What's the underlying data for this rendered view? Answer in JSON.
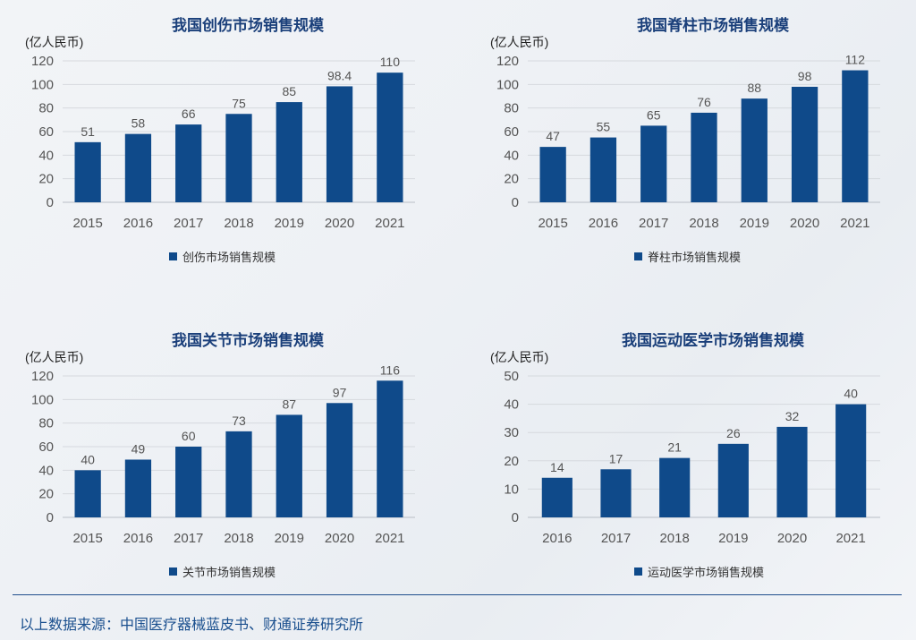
{
  "charts": [
    {
      "title": "我国创伤市场销售规模",
      "unit": "(亿人民币)",
      "legend": "创伤市场销售规模"
    },
    {
      "title": "我国脊柱市场销售规模",
      "unit": "(亿人民币)",
      "legend": "脊柱市场销售规模"
    },
    {
      "title": "我国关节市场销售规模",
      "unit": "(亿人民币)",
      "legend": "关节市场销售规模"
    },
    {
      "title": "我国运动医学市场销售规模",
      "unit": "(亿人民币)",
      "legend": "运动医学市场销售规模"
    }
  ],
  "chart_data": [
    {
      "type": "bar",
      "title": "我国创伤市场销售规模",
      "ylabel": "(亿人民币)",
      "categories": [
        "2015",
        "2016",
        "2017",
        "2018",
        "2019",
        "2020",
        "2021"
      ],
      "series": [
        {
          "name": "创伤市场销售规模",
          "values": [
            51,
            58,
            66,
            75,
            85,
            98.4,
            110
          ]
        }
      ],
      "data_labels": [
        "51",
        "58",
        "66",
        "75",
        "85",
        "98.4",
        "110"
      ],
      "ylim": [
        0,
        120
      ],
      "yticks": [
        0,
        20,
        40,
        60,
        80,
        100,
        120
      ],
      "grid": true,
      "legend_position": "bottom",
      "color": "#0f4a8a"
    },
    {
      "type": "bar",
      "title": "我国脊柱市场销售规模",
      "ylabel": "(亿人民币)",
      "categories": [
        "2015",
        "2016",
        "2017",
        "2018",
        "2019",
        "2020",
        "2021"
      ],
      "series": [
        {
          "name": "脊柱市场销售规模",
          "values": [
            47,
            55,
            65,
            76,
            88,
            98,
            112
          ]
        }
      ],
      "data_labels": [
        "47",
        "55",
        "65",
        "76",
        "88",
        "98",
        "112"
      ],
      "ylim": [
        0,
        120
      ],
      "yticks": [
        0,
        20,
        40,
        60,
        80,
        100,
        120
      ],
      "grid": true,
      "legend_position": "bottom",
      "color": "#0f4a8a"
    },
    {
      "type": "bar",
      "title": "我国关节市场销售规模",
      "ylabel": "(亿人民币)",
      "categories": [
        "2015",
        "2016",
        "2017",
        "2018",
        "2019",
        "2020",
        "2021"
      ],
      "series": [
        {
          "name": "关节市场销售规模",
          "values": [
            40,
            49,
            60,
            73,
            87,
            97,
            116
          ]
        }
      ],
      "data_labels": [
        "40",
        "49",
        "60",
        "73",
        "87",
        "97",
        "116"
      ],
      "ylim": [
        0,
        120
      ],
      "yticks": [
        0,
        20,
        40,
        60,
        80,
        100,
        120
      ],
      "grid": true,
      "legend_position": "bottom",
      "color": "#0f4a8a"
    },
    {
      "type": "bar",
      "title": "我国运动医学市场销售规模",
      "ylabel": "(亿人民币)",
      "categories": [
        "2016",
        "2017",
        "2018",
        "2019",
        "2020",
        "2021"
      ],
      "series": [
        {
          "name": "运动医学市场销售规模",
          "values": [
            14,
            17,
            21,
            26,
            32,
            40
          ]
        }
      ],
      "data_labels": [
        "14",
        "17",
        "21",
        "26",
        "32",
        "40"
      ],
      "ylim": [
        0,
        50
      ],
      "yticks": [
        0,
        10,
        20,
        30,
        40,
        50
      ],
      "grid": true,
      "legend_position": "bottom",
      "color": "#0f4a8a"
    }
  ],
  "source": "以上数据来源：中国医疗器械蓝皮书、财通证券研究所"
}
